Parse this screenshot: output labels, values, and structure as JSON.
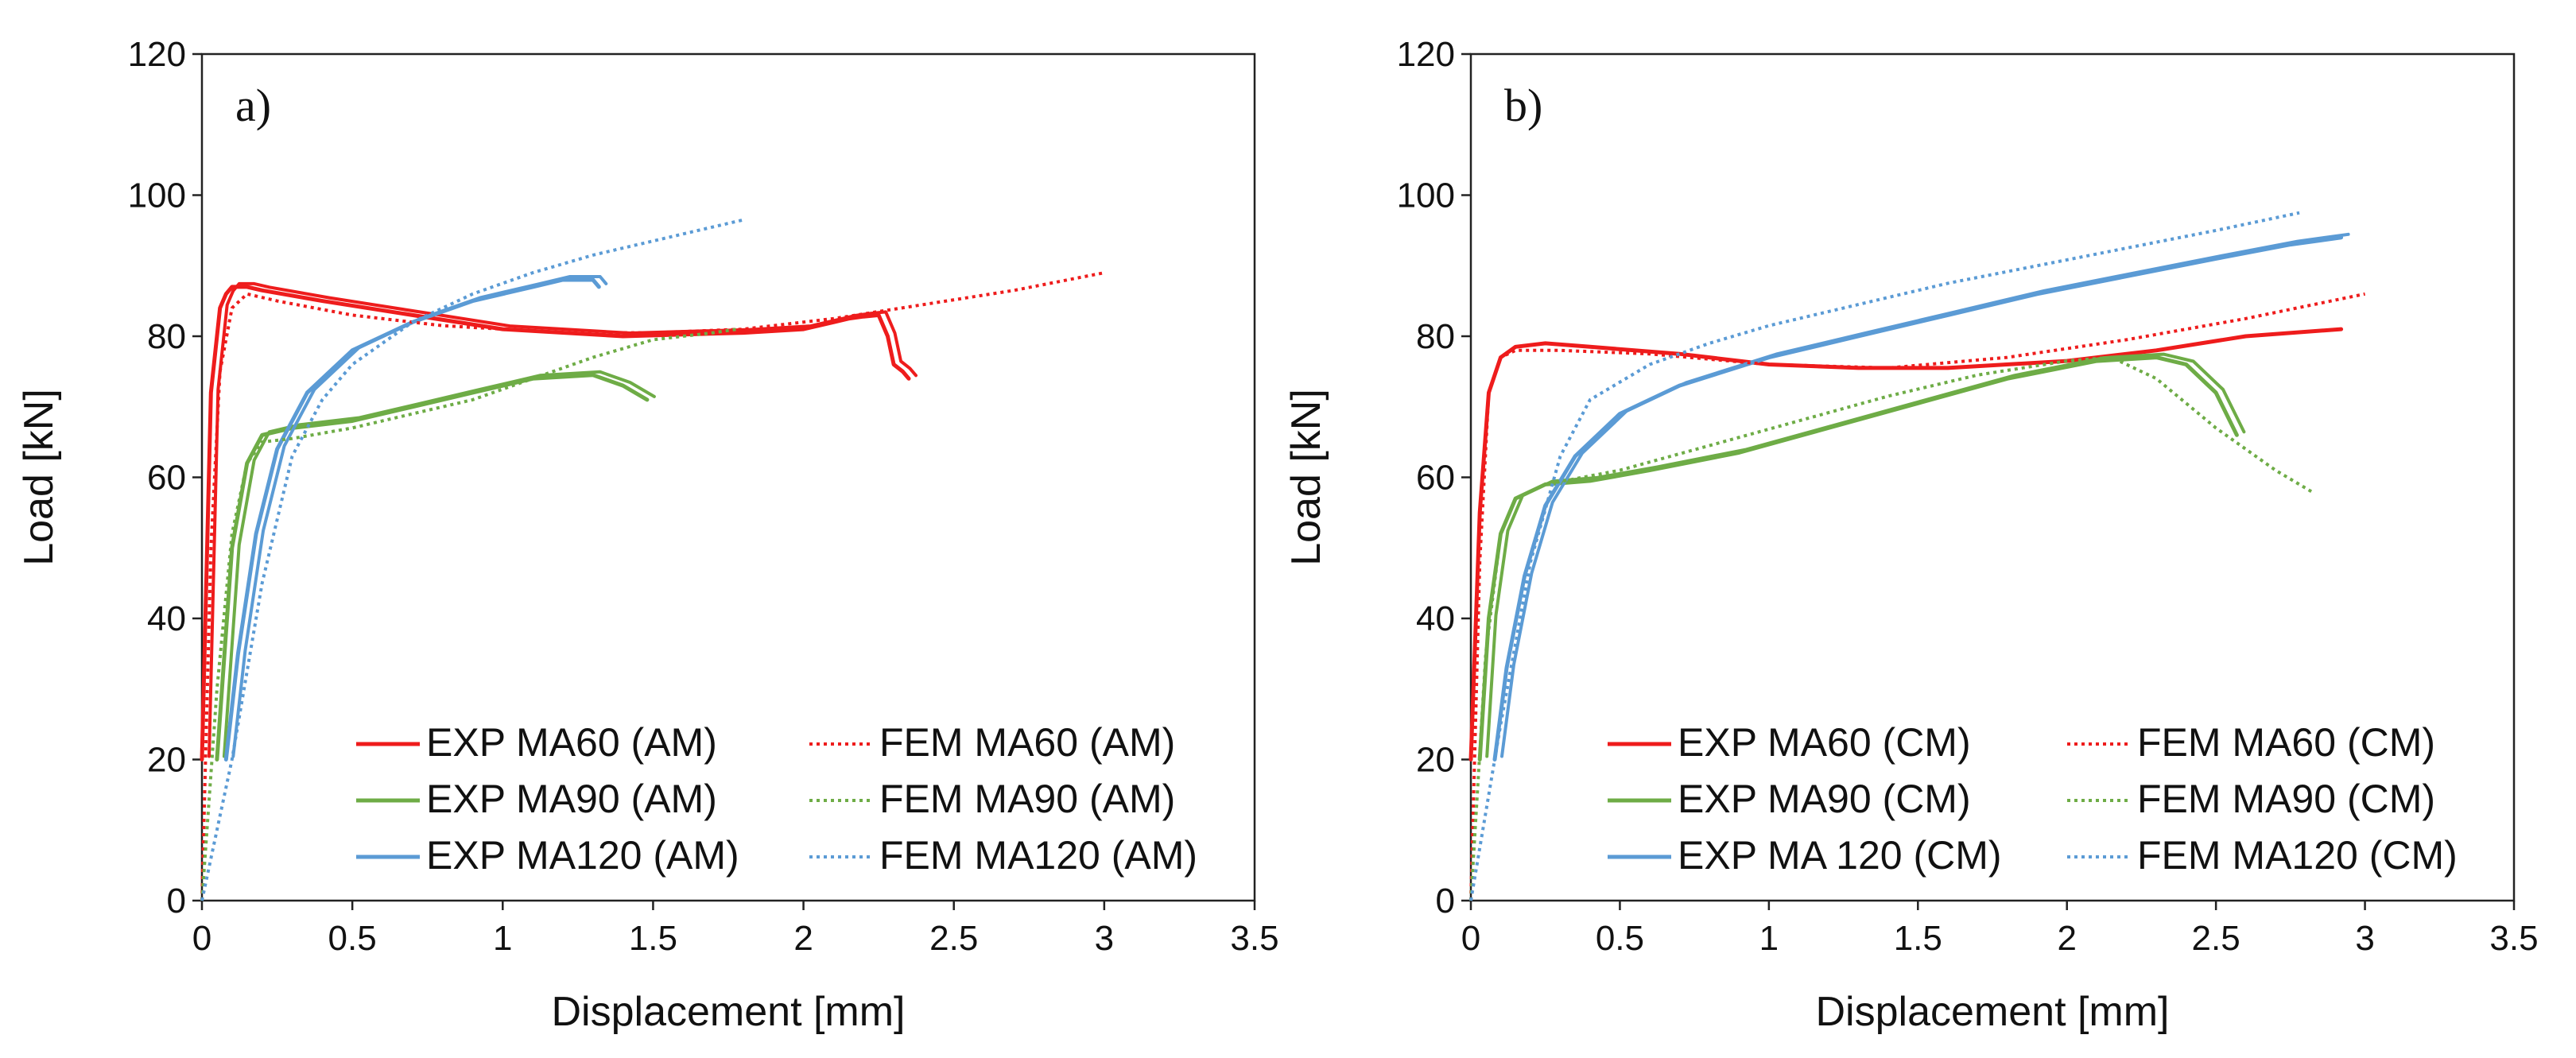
{
  "chart_data": [
    {
      "type": "line",
      "panel_label": "a)",
      "xlabel": "Displacement [mm]",
      "ylabel": "Load [kN]",
      "xlim": [
        0,
        3.5
      ],
      "ylim": [
        0,
        120
      ],
      "xticks": [
        "0",
        "0.5",
        "1",
        "1.5",
        "2",
        "2.5",
        "3",
        "3.5"
      ],
      "yticks": [
        "0",
        "20",
        "40",
        "60",
        "80",
        "100",
        "120"
      ],
      "grid": false,
      "legend_position": "bottom-right",
      "legend_columns": 2,
      "series": [
        {
          "name": "EXP MA60 (AM)",
          "color": "#ee1c1c",
          "style": "solid",
          "double": true,
          "x": [
            0.0,
            0.03,
            0.06,
            0.08,
            0.1,
            0.15,
            0.2,
            0.4,
            0.7,
            1.0,
            1.4,
            1.8,
            2.0,
            2.05,
            2.1,
            2.15,
            2.2,
            2.25,
            2.28,
            2.3,
            2.33,
            2.35
          ],
          "y": [
            20,
            72,
            84,
            86,
            87,
            87,
            86.5,
            85,
            83,
            81,
            80,
            80.5,
            81,
            81.5,
            82,
            82.5,
            82.8,
            83,
            80,
            76,
            75,
            74
          ]
        },
        {
          "name": "EXP MA90 (AM)",
          "color": "#6eac46",
          "style": "solid",
          "double": true,
          "x": [
            0.05,
            0.1,
            0.15,
            0.2,
            0.3,
            0.5,
            0.7,
            0.9,
            1.1,
            1.3,
            1.4,
            1.48
          ],
          "y": [
            20,
            50,
            62,
            66,
            67,
            68,
            70,
            72,
            74,
            74.5,
            73,
            71
          ]
        },
        {
          "name": "EXP MA120 (AM)",
          "color": "#5b9bd5",
          "style": "solid",
          "double": true,
          "x": [
            0.08,
            0.12,
            0.18,
            0.25,
            0.35,
            0.5,
            0.7,
            0.9,
            1.1,
            1.2,
            1.25,
            1.3,
            1.32
          ],
          "y": [
            20,
            35,
            52,
            64,
            72,
            78,
            82,
            85,
            87,
            88,
            88,
            88,
            87
          ]
        },
        {
          "name": "FEM MA60 (AM)",
          "color": "#ee1c1c",
          "style": "dotted",
          "double": false,
          "x": [
            0.0,
            0.03,
            0.06,
            0.1,
            0.15,
            0.25,
            0.5,
            0.8,
            1.0,
            1.2,
            1.5,
            1.8,
            2.1,
            2.4,
            2.7,
            3.0
          ],
          "y": [
            0,
            50,
            75,
            84,
            86,
            85,
            83,
            81.5,
            81,
            80.5,
            80.5,
            81,
            82.5,
            84.5,
            86.5,
            89
          ]
        },
        {
          "name": "FEM MA90 (AM)",
          "color": "#6eac46",
          "style": "dotted",
          "double": false,
          "x": [
            0.0,
            0.05,
            0.1,
            0.15,
            0.2,
            0.3,
            0.5,
            0.7,
            0.9,
            1.1,
            1.3,
            1.5,
            1.7,
            1.78
          ],
          "y": [
            0,
            30,
            52,
            62,
            65,
            65.5,
            67,
            69,
            71,
            74,
            77,
            79.5,
            80.5,
            81
          ]
        },
        {
          "name": "FEM MA120 (AM)",
          "color": "#5b9bd5",
          "style": "dotted",
          "double": false,
          "x": [
            0.0,
            0.1,
            0.2,
            0.3,
            0.4,
            0.5,
            0.7,
            0.9,
            1.1,
            1.3,
            1.5,
            1.7,
            1.8
          ],
          "y": [
            0,
            20,
            45,
            63,
            71,
            76,
            82,
            86,
            89,
            91.5,
            93.5,
            95.5,
            96.5
          ]
        }
      ]
    },
    {
      "type": "line",
      "panel_label": "b)",
      "xlabel": "Displacement [mm]",
      "ylabel": "Load [kN]",
      "xlim": [
        0,
        3.5
      ],
      "ylim": [
        0,
        120
      ],
      "xticks": [
        "0",
        "0.5",
        "1",
        "1.5",
        "2",
        "2.5",
        "3",
        "3.5"
      ],
      "yticks": [
        "0",
        "20",
        "40",
        "60",
        "80",
        "100",
        "120"
      ],
      "grid": false,
      "legend_position": "bottom-right",
      "legend_columns": 2,
      "series": [
        {
          "name": "EXP MA60 (CM)",
          "color": "#ee1c1c",
          "style": "solid",
          "double": false,
          "x": [
            0.0,
            0.03,
            0.06,
            0.1,
            0.15,
            0.25,
            0.4,
            0.7,
            1.0,
            1.3,
            1.6,
            2.0,
            2.3,
            2.6,
            2.92
          ],
          "y": [
            20,
            55,
            72,
            77,
            78.5,
            79,
            78.5,
            77.5,
            76,
            75.5,
            75.5,
            76.5,
            78,
            80,
            81
          ]
        },
        {
          "name": "EXP MA90 (CM)",
          "color": "#6eac46",
          "style": "solid",
          "double": true,
          "x": [
            0.03,
            0.06,
            0.1,
            0.15,
            0.25,
            0.4,
            0.6,
            0.9,
            1.2,
            1.5,
            1.8,
            2.1,
            2.3,
            2.4,
            2.5,
            2.57
          ],
          "y": [
            20,
            40,
            52,
            57,
            59,
            59.5,
            61,
            63.5,
            67,
            70.5,
            74,
            76.5,
            77,
            76,
            72,
            66
          ]
        },
        {
          "name": "EXP MA 120 (CM)",
          "color": "#5b9bd5",
          "style": "solid",
          "double": true,
          "x": [
            0.08,
            0.12,
            0.18,
            0.25,
            0.35,
            0.5,
            0.7,
            1.0,
            1.3,
            1.6,
            1.9,
            2.2,
            2.5,
            2.75,
            2.92
          ],
          "y": [
            20,
            33,
            46,
            56,
            63,
            69,
            73,
            77,
            80,
            83,
            86,
            88.5,
            91,
            93,
            94
          ]
        },
        {
          "name": "FEM MA60 (CM)",
          "color": "#ee1c1c",
          "style": "dotted",
          "double": false,
          "x": [
            0.0,
            0.03,
            0.06,
            0.1,
            0.15,
            0.3,
            0.6,
            1.0,
            1.4,
            1.8,
            2.2,
            2.6,
            3.0
          ],
          "y": [
            0,
            48,
            72,
            77,
            78,
            78,
            77.5,
            76,
            75.5,
            77,
            79.5,
            82.5,
            86
          ]
        },
        {
          "name": "FEM MA90 (CM)",
          "color": "#6eac46",
          "style": "dotted",
          "double": false,
          "x": [
            0.0,
            0.05,
            0.1,
            0.15,
            0.25,
            0.5,
            0.8,
            1.1,
            1.4,
            1.7,
            2.0,
            2.15,
            2.3,
            2.5,
            2.7,
            2.82
          ],
          "y": [
            0,
            35,
            52,
            57,
            59,
            61,
            64.5,
            68,
            71.5,
            74.5,
            76.5,
            77,
            74,
            67,
            61,
            58
          ]
        },
        {
          "name": "FEM MA120 (CM)",
          "color": "#5b9bd5",
          "style": "dotted",
          "double": false,
          "x": [
            0.0,
            0.1,
            0.2,
            0.3,
            0.4,
            0.6,
            0.8,
            1.0,
            1.3,
            1.6,
            1.9,
            2.2,
            2.5,
            2.78
          ],
          "y": [
            0,
            25,
            48,
            63,
            71,
            76,
            79,
            81.5,
            84.5,
            87.5,
            90,
            92.5,
            95,
            97.5
          ]
        }
      ]
    }
  ]
}
